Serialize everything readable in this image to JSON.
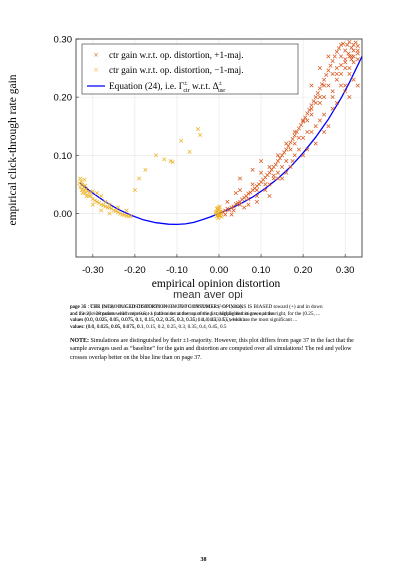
{
  "chart_data": {
    "type": "scatter",
    "xlabel": "empirical opinion distortion",
    "ylabel": "empirical click-through rate gain",
    "xlim": [
      -0.34,
      0.34
    ],
    "ylim": [
      -0.075,
      0.3
    ],
    "xticks": [
      "-0.30",
      "-0.20",
      "-0.10",
      "0.00",
      "0.10",
      "0.20",
      "0.30"
    ],
    "xtick_values": [
      -0.3,
      -0.2,
      -0.1,
      0.0,
      0.1,
      0.2,
      0.3
    ],
    "yticks": [
      "0.00",
      "0.10",
      "0.20",
      "0.30"
    ],
    "ytick_values": [
      0.0,
      0.1,
      0.2,
      0.3
    ],
    "grid": true,
    "legend_position": "top-left",
    "legend": [
      {
        "label": "ctr gain w.r.t. op. distortion, +1-maj.",
        "marker": "x",
        "color": "#d9541a"
      },
      {
        "label": "ctr gain w.r.t. op. distortion, −1-maj.",
        "marker": "x",
        "color": "#edb120"
      },
      {
        "label_prefix": "Equation (24), i.e. Γ",
        "label_sup": "±",
        "label_sub": "ctr",
        "label_mid": " w.r.t. Δ",
        "label_sup2": "±",
        "label_sub2": "usr",
        "marker": "line",
        "color": "#0000ff"
      }
    ],
    "series": [
      {
        "name": "ctr gain w.r.t. op. distortion, +1-maj.",
        "color": "#d9541a",
        "points": [
          [
            0.005,
            0.0
          ],
          [
            0.01,
            0.002
          ],
          [
            0.015,
            0.005
          ],
          [
            0.02,
            0.008
          ],
          [
            0.025,
            0.006
          ],
          [
            0.03,
            0.01
          ],
          [
            0.035,
            0.012
          ],
          [
            0.04,
            0.016
          ],
          [
            0.045,
            0.018
          ],
          [
            0.05,
            0.02
          ],
          [
            0.055,
            0.024
          ],
          [
            0.06,
            0.027
          ],
          [
            0.065,
            0.03
          ],
          [
            0.07,
            0.034
          ],
          [
            0.075,
            0.036
          ],
          [
            0.08,
            0.04
          ],
          [
            0.085,
            0.043
          ],
          [
            0.09,
            0.047
          ],
          [
            0.095,
            0.05
          ],
          [
            0.1,
            0.054
          ],
          [
            0.105,
            0.058
          ],
          [
            0.11,
            0.062
          ],
          [
            0.115,
            0.066
          ],
          [
            0.12,
            0.07
          ],
          [
            0.125,
            0.075
          ],
          [
            0.13,
            0.08
          ],
          [
            0.135,
            0.084
          ],
          [
            0.14,
            0.09
          ],
          [
            0.145,
            0.095
          ],
          [
            0.15,
            0.1
          ],
          [
            0.155,
            0.105
          ],
          [
            0.16,
            0.11
          ],
          [
            0.165,
            0.116
          ],
          [
            0.17,
            0.122
          ],
          [
            0.175,
            0.128
          ],
          [
            0.18,
            0.134
          ],
          [
            0.185,
            0.14
          ],
          [
            0.19,
            0.146
          ],
          [
            0.195,
            0.152
          ],
          [
            0.2,
            0.158
          ],
          [
            0.205,
            0.165
          ],
          [
            0.21,
            0.172
          ],
          [
            0.215,
            0.178
          ],
          [
            0.22,
            0.186
          ],
          [
            0.225,
            0.193
          ],
          [
            0.23,
            0.2
          ],
          [
            0.235,
            0.207
          ],
          [
            0.24,
            0.215
          ],
          [
            0.245,
            0.222
          ],
          [
            0.25,
            0.23
          ],
          [
            0.255,
            0.238
          ],
          [
            0.26,
            0.246
          ],
          [
            0.265,
            0.254
          ],
          [
            0.27,
            0.262
          ],
          [
            0.275,
            0.27
          ],
          [
            0.28,
            0.278
          ],
          [
            0.285,
            0.284
          ],
          [
            0.29,
            0.29
          ],
          [
            0.295,
            0.292
          ],
          [
            0.3,
            0.28
          ],
          [
            0.305,
            0.29
          ],
          [
            0.31,
            0.295
          ],
          [
            0.315,
            0.285
          ],
          [
            0.32,
            0.29
          ],
          [
            0.325,
            0.294
          ],
          [
            0.33,
            0.288
          ],
          [
            0.308,
            0.275
          ],
          [
            0.315,
            0.27
          ],
          [
            0.3,
            0.265
          ],
          [
            0.04,
            0.035
          ],
          [
            0.06,
            0.01
          ],
          [
            0.09,
            0.03
          ],
          [
            0.11,
            0.04
          ],
          [
            0.12,
            0.03
          ],
          [
            0.14,
            0.06
          ],
          [
            0.16,
            0.07
          ],
          [
            0.175,
            0.09
          ],
          [
            0.18,
            0.12
          ],
          [
            0.2,
            0.13
          ],
          [
            0.22,
            0.14
          ],
          [
            0.24,
            0.16
          ],
          [
            0.25,
            0.2
          ],
          [
            0.27,
            0.21
          ],
          [
            0.28,
            0.23
          ],
          [
            0.29,
            0.24
          ],
          [
            0.3,
            0.25
          ],
          [
            0.31,
            0.24
          ],
          [
            0.32,
            0.26
          ],
          [
            0.33,
            0.265
          ],
          [
            0.22,
            0.22
          ],
          [
            0.24,
            0.25
          ],
          [
            0.28,
            0.25
          ],
          [
            0.3,
            0.21
          ],
          [
            0.32,
            0.23
          ],
          [
            0.33,
            0.22
          ],
          [
            0.26,
            0.27
          ],
          [
            0.29,
            0.27
          ],
          [
            0.05,
            0.06
          ],
          [
            0.08,
            0.075
          ],
          [
            0.1,
            0.09
          ],
          [
            0.13,
            0.06
          ],
          [
            0.15,
            0.06
          ],
          [
            0.16,
            0.09
          ],
          [
            0.18,
            0.1
          ],
          [
            0.2,
            0.1
          ],
          [
            0.21,
            0.11
          ],
          [
            0.23,
            0.12
          ],
          [
            0.25,
            0.14
          ],
          [
            0.26,
            0.15
          ],
          [
            0.3,
            0.22
          ],
          [
            0.31,
            0.2
          ],
          [
            0.28,
            0.19
          ],
          [
            0.27,
            0.18
          ],
          [
            0.24,
            0.19
          ],
          [
            0.22,
            0.17
          ],
          [
            0.02,
            0.02
          ],
          [
            0.03,
            -0.002
          ],
          [
            0.07,
            0.015
          ],
          [
            0.09,
            0.02
          ],
          [
            0.12,
            0.05
          ],
          [
            0.14,
            0.07
          ],
          [
            0.17,
            0.08
          ],
          [
            0.19,
            0.11
          ],
          [
            0.21,
            0.14
          ],
          [
            0.23,
            0.15
          ],
          [
            0.25,
            0.17
          ],
          [
            0.27,
            0.2
          ],
          [
            0.29,
            0.22
          ],
          [
            0.31,
            0.25
          ],
          [
            0.32,
            0.27
          ],
          [
            0.33,
            0.28
          ],
          [
            0.05,
            0.04
          ],
          [
            0.08,
            0.05
          ],
          [
            0.1,
            0.07
          ],
          [
            0.12,
            0.08
          ],
          [
            0.14,
            0.1
          ],
          [
            0.16,
            0.12
          ],
          [
            0.18,
            0.14
          ],
          [
            0.2,
            0.16
          ],
          [
            0.22,
            0.18
          ],
          [
            0.24,
            0.2
          ],
          [
            0.26,
            0.22
          ],
          [
            0.28,
            0.24
          ],
          [
            0.3,
            0.26
          ],
          [
            0.31,
            0.27
          ],
          [
            0.32,
            0.28
          ],
          [
            0.33,
            0.275
          ],
          [
            0.315,
            0.265
          ],
          [
            0.29,
            0.255
          ],
          [
            0.27,
            0.24
          ],
          [
            0.25,
            0.22
          ],
          [
            0.23,
            0.19
          ],
          [
            0.21,
            0.16
          ],
          [
            0.19,
            0.13
          ],
          [
            0.17,
            0.11
          ],
          [
            0.15,
            0.08
          ],
          [
            0.13,
            0.065
          ],
          [
            0.11,
            0.05
          ],
          [
            0.09,
            0.04
          ],
          [
            0.07,
            0.025
          ],
          [
            0.05,
            0.015
          ],
          [
            0.035,
            0.005
          ],
          [
            0.015,
            -0.002
          ]
        ]
      },
      {
        "name": "ctr gain w.r.t. op. distortion, −1-maj.",
        "color": "#edb120",
        "points": [
          [
            -0.33,
            0.06
          ],
          [
            -0.328,
            0.055
          ],
          [
            -0.325,
            0.05
          ],
          [
            -0.322,
            0.045
          ],
          [
            -0.32,
            0.04
          ],
          [
            -0.318,
            0.035
          ],
          [
            -0.315,
            0.03
          ],
          [
            -0.31,
            0.03
          ],
          [
            -0.305,
            0.03
          ],
          [
            -0.3,
            0.025
          ],
          [
            -0.295,
            0.022
          ],
          [
            -0.29,
            0.02
          ],
          [
            -0.285,
            0.018
          ],
          [
            -0.28,
            0.015
          ],
          [
            -0.275,
            0.014
          ],
          [
            -0.27,
            0.012
          ],
          [
            -0.265,
            0.01
          ],
          [
            -0.26,
            0.01
          ],
          [
            -0.255,
            0.008
          ],
          [
            -0.25,
            0.005
          ],
          [
            -0.245,
            0.004
          ],
          [
            -0.24,
            0.002
          ],
          [
            -0.235,
            0.0
          ],
          [
            -0.23,
            -0.002
          ],
          [
            -0.225,
            -0.003
          ],
          [
            -0.22,
            -0.004
          ],
          [
            -0.215,
            -0.005
          ],
          [
            -0.21,
            -0.005
          ],
          [
            -0.332,
            0.052
          ],
          [
            -0.33,
            0.045
          ],
          [
            -0.326,
            0.04
          ],
          [
            -0.324,
            0.035
          ],
          [
            -0.32,
            0.058
          ],
          [
            -0.318,
            0.048
          ],
          [
            -0.316,
            0.042
          ],
          [
            -0.312,
            0.038
          ],
          [
            -0.308,
            0.036
          ],
          [
            -0.3,
            0.038
          ],
          [
            -0.29,
            0.035
          ],
          [
            -0.28,
            0.03
          ],
          [
            -0.27,
            0.02
          ],
          [
            -0.26,
            0.015
          ],
          [
            -0.24,
            0.01
          ],
          [
            -0.22,
            0.005
          ],
          [
            -0.3,
            0.015
          ],
          [
            -0.28,
            0.005
          ],
          [
            -0.26,
            0.0
          ],
          [
            -0.005,
            0.008
          ],
          [
            -0.004,
            0.003
          ],
          [
            -0.003,
            -0.002
          ],
          [
            -0.002,
            0.005
          ],
          [
            -0.001,
            0.0
          ],
          [
            0.0,
            -0.004
          ],
          [
            0.001,
            0.006
          ],
          [
            0.002,
            0.002
          ],
          [
            0.003,
            -0.003
          ],
          [
            0.004,
            0.004
          ],
          [
            -0.006,
            -0.001
          ],
          [
            -0.005,
            -0.005
          ],
          [
            0.0,
            0.01
          ],
          [
            0.002,
            0.012
          ],
          [
            -0.003,
            0.009
          ],
          [
            0.005,
            0.0
          ],
          [
            -0.008,
            0.002
          ],
          [
            0.006,
            -0.006
          ],
          [
            -0.002,
            -0.008
          ],
          [
            0.001,
            -0.003
          ],
          [
            -0.09,
            0.125
          ],
          [
            -0.07,
            0.106
          ],
          [
            -0.13,
            0.093
          ],
          [
            -0.115,
            0.09
          ],
          [
            -0.11,
            0.088
          ],
          [
            -0.05,
            0.145
          ],
          [
            -0.045,
            0.135
          ],
          [
            -0.19,
            0.06
          ],
          [
            -0.175,
            0.075
          ],
          [
            -0.2,
            0.04
          ],
          [
            -0.15,
            0.1
          ]
        ]
      },
      {
        "name": "Equation (24)",
        "color": "#0000ff",
        "curve": [
          [
            -0.33,
            0.052
          ],
          [
            -0.3,
            0.035
          ],
          [
            -0.27,
            0.02
          ],
          [
            -0.24,
            0.007
          ],
          [
            -0.21,
            -0.003
          ],
          [
            -0.18,
            -0.011
          ],
          [
            -0.15,
            -0.016
          ],
          [
            -0.12,
            -0.0185
          ],
          [
            -0.1,
            -0.019
          ],
          [
            -0.08,
            -0.018
          ],
          [
            -0.06,
            -0.0155
          ],
          [
            -0.04,
            -0.011
          ],
          [
            -0.02,
            -0.006
          ],
          [
            0.0,
            0.0
          ],
          [
            0.02,
            0.006
          ],
          [
            0.05,
            0.016
          ],
          [
            0.08,
            0.028
          ],
          [
            0.11,
            0.043
          ],
          [
            0.14,
            0.06
          ],
          [
            0.17,
            0.08
          ],
          [
            0.2,
            0.104
          ],
          [
            0.23,
            0.131
          ],
          [
            0.26,
            0.162
          ],
          [
            0.29,
            0.198
          ],
          [
            0.31,
            0.225
          ],
          [
            0.33,
            0.255
          ],
          [
            0.34,
            0.27
          ]
        ]
      }
    ]
  },
  "page": {
    "overlap_lines": [
      "page 36 : THE INTRODUCED DISTORTION ON TOP CONSUMERS' OPINIONS IS BIASED toward (+) and in down",
      "and the 23 / 28 points which represent a pattern set at the top of the list, highlighted in green at the right, for the (0.25, ...",
      "values (0.0, 0.025, 0.05, 0.075, 0.1, 0.15, 0.2, 0.25, 0.3, 0.35, 0.4, 0.45, 0.5), which are the most significant ...",
      "values: (0.0, 0.025, 0.05, 0.075, 0.1, 0.15, 0.2, 0.25, 0.3, 0.35, 0.4, 0.45, 0.5"
    ],
    "overlap_ghost_lines": [
      "page 35 : CTR (beta) = 0.05 DISTORTION ON GAIN TO OPTIMISE (+1/-1) maj.",
      "and 23 representations with ratio 0.5, -1 0.42 with random scattering / multiple distortions, opinion",
      "values (0.0, 0.025, 0.05, 0.075, 0.1, 0.15, 0.2, 0.25, 0.3, 0.35) , 0.4, 0.45, 0.5), which ...",
      "values: (0.0, 0.025, 0.05, 0.075, 0.1"
    ],
    "garbled_label": "mean aver opi",
    "note_label": "NOTE:",
    "note_text": " Simulations are distinguished by their ±1-majority. However, this plot differs from page 37 in the fact that the sample averages used as “baseline” for the gain and distortion are computed over all simulations! The red and yellow crosses overlap better on the blue line than on page 37.",
    "page_number": "38"
  }
}
